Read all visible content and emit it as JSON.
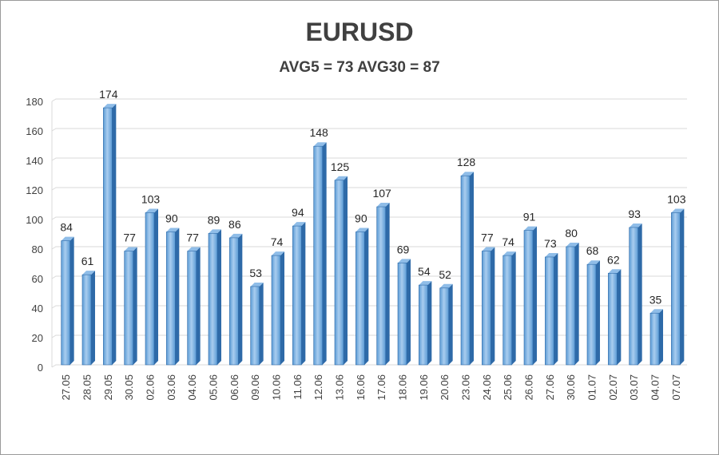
{
  "chart_data": {
    "type": "bar",
    "title": "EURUSD",
    "subtitle": "AVG5 = 73 AVG30 = 87",
    "categories": [
      "27.05",
      "28.05",
      "29.05",
      "30.05",
      "02.06",
      "03.06",
      "04.06",
      "05.06",
      "06.06",
      "09.06",
      "10.06",
      "11.06",
      "12.06",
      "13.06",
      "16.06",
      "17.06",
      "18.06",
      "19.06",
      "20.06",
      "23.06",
      "24.06",
      "25.06",
      "26.06",
      "27.06",
      "30.06",
      "01.07",
      "02.07",
      "03.07",
      "04.07",
      "07.07"
    ],
    "values": [
      84,
      61,
      174,
      77,
      103,
      90,
      77,
      89,
      86,
      53,
      74,
      94,
      148,
      125,
      90,
      107,
      69,
      54,
      52,
      128,
      77,
      74,
      91,
      73,
      80,
      68,
      62,
      93,
      35,
      103
    ],
    "ylim": [
      0,
      180
    ],
    "yticks": [
      0,
      20,
      40,
      60,
      80,
      100,
      120,
      140,
      160,
      180
    ],
    "grid": true,
    "legend": "none",
    "colors": {
      "bar_front": "#5b9bd5",
      "bar_highlight": "#a9cdef",
      "bar_side": "#2e6aa8",
      "bar_top": "#8fbde8",
      "grid": "#d9d9d9"
    }
  }
}
